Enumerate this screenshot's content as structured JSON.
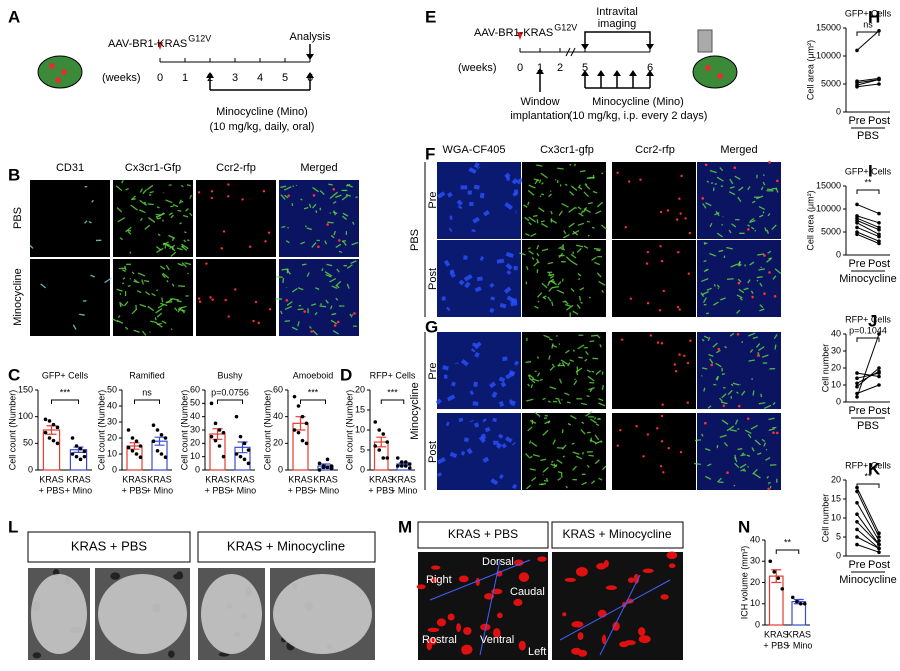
{
  "panel_labels": [
    "A",
    "B",
    "C",
    "D",
    "E",
    "F",
    "G",
    "H",
    "I",
    "J",
    "K",
    "L",
    "M",
    "N"
  ],
  "timeline_a": {
    "construct": "AAV-BR1-KRAS",
    "superscript": "G12V",
    "end": "Analysis",
    "unit": "(weeks)",
    "ticks": [
      "0",
      "1",
      "2",
      "3",
      "4",
      "5",
      "6"
    ],
    "treatment": "Minocycline (Mino)",
    "dose": "(10 mg/kg, daily, oral)"
  },
  "timeline_e": {
    "construct": "AAV-BR1-KRAS",
    "superscript": "G12V",
    "imaging": [
      "Intravital",
      "imaging"
    ],
    "unit": "(weeks)",
    "ticks": [
      "0",
      "1",
      "2",
      "5",
      "6"
    ],
    "window": [
      "Window",
      "implantation"
    ],
    "treatment": "Minocycline (Mino)",
    "dose": "(10 mg/kg, i.p. every 2 days)"
  },
  "panel_b": {
    "columns": [
      "CD31",
      "Cx3cr1-Gfp",
      "Ccr2-rfp",
      "Merged"
    ],
    "rows": [
      "PBS",
      "Minocycline"
    ]
  },
  "panel_fg": {
    "columns": [
      "WGA-CF405",
      "Cx3cr1-gfp",
      "Ccr2-rfp",
      "Merged"
    ],
    "groups": [
      "PBS",
      "Minocycline"
    ],
    "rows": [
      "Pre",
      "Post"
    ]
  },
  "panel_l": {
    "boxes": [
      "KRAS + PBS",
      "KRAS + Minocycline"
    ]
  },
  "panel_m": {
    "boxes": [
      "KRAS + PBS",
      "KRAS + Minocycline"
    ],
    "axes": [
      "Right",
      "Dorsal",
      "Caudal",
      "Rostral",
      "Ventral",
      "Left"
    ]
  },
  "chart_data": [
    {
      "type": "bar",
      "title": "GFP+ Cells",
      "ylabel": "Cell count (Number)",
      "categories": [
        [
          "KRAS",
          "+ PBS"
        ],
        [
          "KRAS",
          "+ Mino"
        ]
      ],
      "values": [
        75,
        38
      ],
      "errors": [
        8,
        5
      ],
      "points": [
        [
          95,
          92,
          85,
          80,
          70,
          60,
          55,
          50
        ],
        [
          60,
          45,
          40,
          35,
          30,
          25,
          20,
          25
        ]
      ],
      "colors": [
        "#e63b2e",
        "#3b4bd6"
      ],
      "ylim": [
        0,
        150
      ],
      "yticks": [
        0,
        50,
        100,
        150
      ],
      "annotation": "***"
    },
    {
      "type": "bar",
      "title": "Ramified",
      "ylabel": "Cell count (Number)",
      "categories": [
        [
          "KRAS",
          "+ PBS"
        ],
        [
          "KRAS",
          "+ Mino"
        ]
      ],
      "values": [
        15,
        18
      ],
      "errors": [
        2,
        2.5
      ],
      "points": [
        [
          25,
          20,
          18,
          15,
          14,
          12,
          10,
          8
        ],
        [
          28,
          25,
          22,
          20,
          18,
          12,
          10,
          8
        ]
      ],
      "colors": [
        "#e63b2e",
        "#3b4bd6"
      ],
      "ylim": [
        0,
        50
      ],
      "yticks": [
        0,
        10,
        20,
        30,
        40,
        50
      ],
      "annotation": "ns"
    },
    {
      "type": "bar",
      "title": "Bushy",
      "ylabel": "Cell count (Number)",
      "categories": [
        [
          "KRAS",
          "+ PBS"
        ],
        [
          "KRAS",
          "+ Mino"
        ]
      ],
      "values": [
        27,
        17
      ],
      "errors": [
        4,
        4
      ],
      "points": [
        [
          50,
          35,
          30,
          28,
          25,
          22,
          18,
          10
        ],
        [
          40,
          25,
          20,
          15,
          12,
          10,
          8,
          5
        ]
      ],
      "colors": [
        "#e63b2e",
        "#3b4bd6"
      ],
      "ylim": [
        0,
        60
      ],
      "yticks": [
        0,
        10,
        20,
        30,
        40,
        50,
        60
      ],
      "annotation": "p=0.0756"
    },
    {
      "type": "bar",
      "title": "Amoeboid",
      "ylabel": "Cell count (Number)",
      "categories": [
        [
          "KRAS",
          "+ PBS"
        ],
        [
          "KRAS",
          "+ Mino"
        ]
      ],
      "values": [
        35,
        3
      ],
      "errors": [
        5,
        1.5
      ],
      "points": [
        [
          55,
          48,
          40,
          35,
          30,
          28,
          22,
          20
        ],
        [
          5,
          3,
          2,
          1,
          0,
          2,
          8,
          3
        ]
      ],
      "colors": [
        "#e63b2e",
        "#3b4bd6"
      ],
      "ylim": [
        0,
        60
      ],
      "yticks": [
        0,
        20,
        40,
        60
      ],
      "annotation": "***"
    },
    {
      "type": "bar",
      "title": "RFP+ Cells",
      "ylabel": "Cell count (Number)",
      "categories": [
        [
          "KRAS",
          "+ PBS"
        ],
        [
          "KRAS",
          "+ Mino"
        ]
      ],
      "values": [
        7,
        1.5
      ],
      "errors": [
        1.2,
        0.3
      ],
      "points": [
        [
          12,
          10,
          9,
          7,
          6,
          5,
          3,
          3
        ],
        [
          3,
          2,
          2,
          1.5,
          1,
          1,
          1,
          0.5
        ]
      ],
      "colors": [
        "#e63b2e",
        "#3b4bd6"
      ],
      "ylim": [
        0,
        20
      ],
      "yticks": [
        0,
        5,
        10,
        15,
        20
      ],
      "annotation": "***"
    },
    {
      "type": "paired",
      "title": "GFP+ Cells",
      "ylabel": "Cell area (μm²)",
      "categories": [
        "Pre",
        "Post"
      ],
      "xlabel": "PBS",
      "pairs": [
        [
          11000,
          14500
        ],
        [
          5500,
          6000
        ],
        [
          5200,
          5800
        ],
        [
          4800,
          5800
        ],
        [
          4500,
          5000
        ]
      ],
      "ylim": [
        0,
        15000
      ],
      "yticks": [
        0,
        5000,
        10000,
        15000
      ],
      "annotation": "ns"
    },
    {
      "type": "paired",
      "title": "GFP+ Cells",
      "ylabel": "Cell area (μm²)",
      "categories": [
        "Pre",
        "Post"
      ],
      "xlabel": "Minocycline",
      "pairs": [
        [
          11000,
          9000
        ],
        [
          8500,
          7000
        ],
        [
          8000,
          6000
        ],
        [
          7500,
          5500
        ],
        [
          7000,
          4500
        ],
        [
          6000,
          4000
        ],
        [
          5000,
          3000
        ],
        [
          4500,
          2500
        ]
      ],
      "ylim": [
        0,
        15000
      ],
      "yticks": [
        0,
        5000,
        10000,
        15000
      ],
      "annotation": "**"
    },
    {
      "type": "paired",
      "title": "RFP+ Cells",
      "ylabel": "Cell number",
      "categories": [
        "Pre",
        "Post"
      ],
      "xlabel": "PBS",
      "pairs": [
        [
          3,
          40
        ],
        [
          9,
          20
        ],
        [
          11,
          18
        ],
        [
          14,
          17
        ],
        [
          17,
          15
        ],
        [
          5,
          10
        ]
      ],
      "ylim": [
        0,
        40
      ],
      "yticks": [
        0,
        10,
        20,
        30,
        40
      ],
      "annotation": "p=0.1044"
    },
    {
      "type": "paired",
      "title": "RFP+ Cells",
      "ylabel": "Cell number",
      "categories": [
        "Pre",
        "Post"
      ],
      "xlabel": "Minocycline",
      "pairs": [
        [
          18,
          6
        ],
        [
          17,
          5
        ],
        [
          14,
          4
        ],
        [
          11,
          3
        ],
        [
          9,
          3
        ],
        [
          7,
          2
        ],
        [
          5,
          2
        ],
        [
          3,
          1
        ]
      ],
      "ylim": [
        0,
        20
      ],
      "yticks": [
        0,
        5,
        10,
        15,
        20
      ],
      "annotation": "**"
    },
    {
      "type": "bar",
      "ylabel": "ICH volume (mm³)",
      "categories": [
        [
          "KRAS",
          "+ PBS"
        ],
        [
          "KRAS",
          "+ Mino"
        ]
      ],
      "values": [
        23,
        11
      ],
      "errors": [
        3,
        1
      ],
      "points": [
        [
          30,
          25,
          22,
          17
        ],
        [
          13,
          11,
          10,
          10
        ]
      ],
      "colors": [
        "#e63b2e",
        "#3b4bd6"
      ],
      "ylim": [
        0,
        40
      ],
      "yticks": [
        0,
        10,
        20,
        30,
        40
      ],
      "annotation": "**"
    }
  ]
}
